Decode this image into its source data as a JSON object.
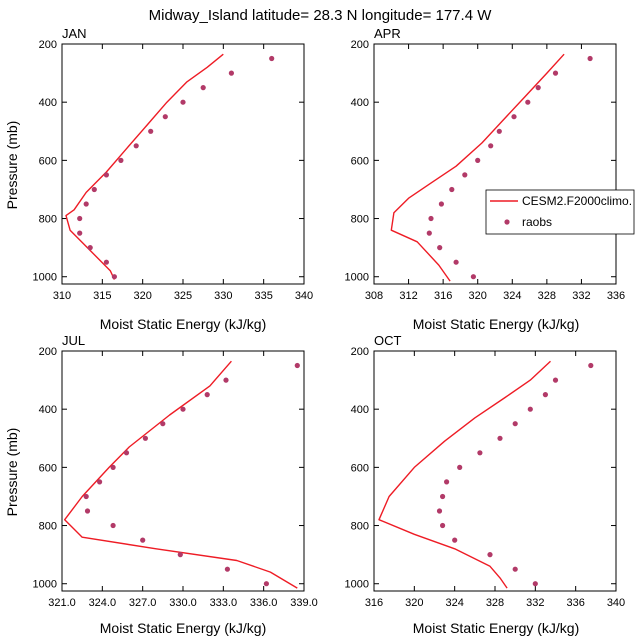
{
  "title": "Midway_Island  latitude= 28.3 N longitude= 177.4 W",
  "legend": {
    "model": "CESM2.F2000climo.",
    "obs": "raobs"
  },
  "colors": {
    "model": "#ee1c25",
    "obs": "#b23a68",
    "axis": "#000000"
  },
  "chart_data": [
    {
      "type": "line",
      "panel": "JAN",
      "xlabel": "Moist Static Energy (kJ/kg)",
      "ylabel": "Pressure (mb)",
      "xlim": [
        310,
        340
      ],
      "ylim": [
        1025,
        200
      ],
      "xticks": [
        310,
        315,
        320,
        325,
        330,
        335,
        340
      ],
      "xticklabels": [
        "310",
        "315",
        "320",
        "325",
        "330",
        "335",
        "340"
      ],
      "yticks": [
        200,
        400,
        600,
        800,
        1000
      ],
      "yticklabels": [
        "200",
        "400",
        "600",
        "800",
        "1000"
      ],
      "series": [
        {
          "name": "CESM2.F2000climo.",
          "kind": "line",
          "x": [
            330.0,
            328.0,
            325.5,
            323.0,
            320.5,
            318.0,
            315.5,
            313.0,
            311.5,
            310.5,
            311.0,
            313.5,
            316.0,
            316.5
          ],
          "y": [
            235,
            280,
            330,
            400,
            480,
            560,
            640,
            710,
            770,
            790,
            840,
            910,
            980,
            1010
          ]
        },
        {
          "name": "raobs",
          "kind": "scatter",
          "x": [
            336.0,
            331.0,
            327.5,
            325.0,
            322.8,
            321.0,
            319.2,
            317.3,
            315.5,
            314.0,
            313.0,
            312.2,
            312.2,
            313.5,
            315.5,
            316.5
          ],
          "y": [
            250,
            300,
            350,
            400,
            450,
            500,
            550,
            600,
            650,
            700,
            750,
            800,
            850,
            900,
            950,
            1000
          ]
        }
      ]
    },
    {
      "type": "line",
      "panel": "APR",
      "xlabel": "Moist Static Energy (kJ/kg)",
      "ylabel": "",
      "xlim": [
        308,
        336
      ],
      "ylim": [
        1025,
        200
      ],
      "xticks": [
        308,
        312,
        316,
        320,
        324,
        328,
        332,
        336
      ],
      "xticklabels": [
        "308",
        "312",
        "316",
        "320",
        "324",
        "328",
        "332",
        "336"
      ],
      "yticks": [
        200,
        400,
        600,
        800,
        1000
      ],
      "yticklabels": [
        "200",
        "400",
        "600",
        "800",
        "1000"
      ],
      "series": [
        {
          "name": "CESM2.F2000climo.",
          "kind": "line",
          "x": [
            330.0,
            328.0,
            325.5,
            323.0,
            320.5,
            317.5,
            314.5,
            312.0,
            310.3,
            310.0,
            313.0,
            315.5,
            316.8
          ],
          "y": [
            235,
            300,
            380,
            460,
            540,
            620,
            680,
            730,
            780,
            840,
            880,
            960,
            1015
          ]
        },
        {
          "name": "raobs",
          "kind": "scatter",
          "x": [
            333.0,
            329.0,
            327.0,
            325.8,
            324.2,
            322.5,
            321.5,
            320.0,
            318.5,
            317.0,
            315.8,
            314.6,
            314.4,
            315.6,
            317.5,
            319.5
          ],
          "y": [
            250,
            300,
            350,
            400,
            450,
            500,
            550,
            600,
            650,
            700,
            750,
            800,
            850,
            900,
            950,
            1000
          ]
        }
      ]
    },
    {
      "type": "line",
      "panel": "JUL",
      "xlabel": "Moist Static Energy (kJ/kg)",
      "ylabel": "Pressure (mb)",
      "xlim": [
        321,
        339
      ],
      "ylim": [
        1025,
        200
      ],
      "xticks": [
        321,
        324,
        327,
        330,
        333,
        336,
        339
      ],
      "xticklabels": [
        "321.0",
        "324.0",
        "327.0",
        "330.0",
        "333.0",
        "336.0",
        "339.0"
      ],
      "yticks": [
        200,
        400,
        600,
        800,
        1000
      ],
      "yticklabels": [
        "200",
        "400",
        "600",
        "800",
        "1000"
      ],
      "series": [
        {
          "name": "CESM2.F2000climo.",
          "kind": "line",
          "x": [
            333.6,
            332.0,
            329.0,
            326.0,
            324.5,
            322.5,
            321.2,
            322.5,
            328.0,
            334.0,
            336.5,
            338.5
          ],
          "y": [
            235,
            320,
            420,
            530,
            600,
            700,
            780,
            840,
            880,
            920,
            960,
            1015
          ]
        },
        {
          "name": "raobs",
          "kind": "scatter",
          "x": [
            338.5,
            333.2,
            331.8,
            330.0,
            328.5,
            327.2,
            325.8,
            324.8,
            323.8,
            322.8,
            322.9,
            324.8,
            327.0,
            329.8,
            333.3,
            336.2
          ],
          "y": [
            250,
            300,
            350,
            400,
            450,
            500,
            550,
            600,
            650,
            700,
            750,
            800,
            850,
            900,
            950,
            1000
          ]
        }
      ]
    },
    {
      "type": "line",
      "panel": "OCT",
      "xlabel": "Moist Static Energy (kJ/kg)",
      "ylabel": "",
      "xlim": [
        316,
        340
      ],
      "ylim": [
        1025,
        200
      ],
      "xticks": [
        316,
        320,
        324,
        328,
        332,
        336,
        340
      ],
      "xticklabels": [
        "316",
        "320",
        "324",
        "328",
        "332",
        "336",
        "340"
      ],
      "yticks": [
        200,
        400,
        600,
        800,
        1000
      ],
      "yticklabels": [
        "200",
        "400",
        "600",
        "800",
        "1000"
      ],
      "series": [
        {
          "name": "CESM2.F2000climo.",
          "kind": "line",
          "x": [
            333.5,
            331.5,
            329.0,
            326.0,
            323.0,
            320.0,
            317.5,
            316.5,
            320.0,
            324.0,
            327.5,
            328.5,
            329.2
          ],
          "y": [
            235,
            300,
            360,
            430,
            510,
            600,
            700,
            780,
            830,
            880,
            940,
            980,
            1015
          ]
        },
        {
          "name": "raobs",
          "kind": "scatter",
          "x": [
            337.5,
            334.0,
            333.0,
            331.5,
            330.0,
            328.5,
            326.5,
            324.5,
            323.2,
            322.8,
            322.5,
            322.8,
            324.0,
            327.5,
            330.0,
            332.0
          ],
          "y": [
            250,
            300,
            350,
            400,
            450,
            500,
            550,
            600,
            650,
            700,
            750,
            800,
            850,
            900,
            950,
            1000
          ]
        }
      ]
    }
  ]
}
